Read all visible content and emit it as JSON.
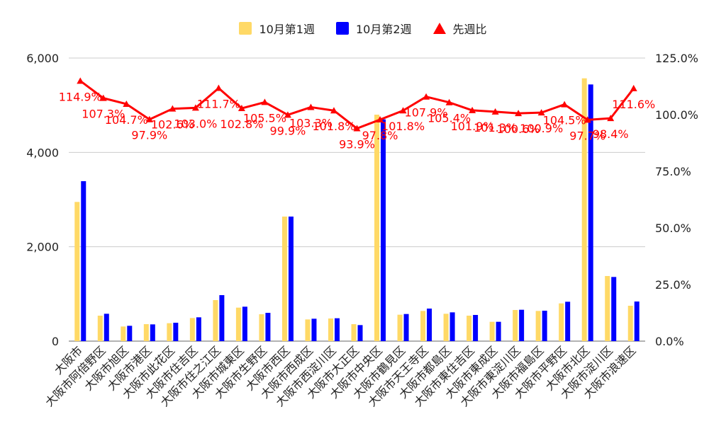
{
  "chart_data": {
    "type": "bar",
    "title": "",
    "categories": [
      "大阪市",
      "大阪市阿倍野区",
      "大阪市旭区",
      "大阪市港区",
      "大阪市此花区",
      "大阪市住吉区",
      "大阪市住之江区",
      "大阪市城東区",
      "大阪市生野区",
      "大阪市西区",
      "大阪市西成区",
      "大阪市西淀川区",
      "大阪市大正区",
      "大阪市中央区",
      "大阪市鶴見区",
      "大阪市天王寺区",
      "大阪市都島区",
      "大阪市東住吉区",
      "大阪市東成区",
      "大阪市東淀川区",
      "大阪市福島区",
      "大阪市平野区",
      "大阪市北区",
      "大阪市淀川区",
      "大阪市浪速区"
    ],
    "series": [
      {
        "name": "10月第1週",
        "type": "bar",
        "axis": "left",
        "color": "#ffd966",
        "values": [
          2950,
          540,
          310,
          360,
          380,
          490,
          870,
          710,
          570,
          2640,
          460,
          480,
          360,
          4800,
          560,
          640,
          580,
          540,
          410,
          660,
          640,
          800,
          5570,
          1380,
          750
        ]
      },
      {
        "name": "10月第2週",
        "type": "bar",
        "axis": "left",
        "color": "#0000ff",
        "values": [
          3390,
          580,
          325,
          355,
          390,
          505,
          975,
          730,
          600,
          2640,
          475,
          485,
          340,
          4700,
          575,
          690,
          610,
          555,
          410,
          665,
          645,
          835,
          5440,
          1360,
          840
        ]
      },
      {
        "name": "先週比",
        "type": "line",
        "axis": "right",
        "color": "#ff0000",
        "values": [
          114.9,
          107.3,
          104.7,
          97.9,
          102.6,
          103.0,
          111.7,
          102.8,
          105.5,
          99.9,
          103.3,
          101.8,
          93.9,
          97.8,
          101.8,
          107.9,
          105.4,
          101.9,
          101.3,
          100.6,
          100.9,
          104.5,
          97.7,
          98.4,
          111.6
        ]
      }
    ],
    "data_labels": [
      "114.9%",
      "107.3%",
      "104.7%",
      "97.9%",
      "102.6%",
      "103.0%",
      "111.7%",
      "102.8%",
      "105.5%",
      "99.9%",
      "103.3%",
      "101.8%",
      "93.9%",
      "97.8%",
      "101.8%",
      "107.9%",
      "105.4%",
      "101.9%",
      "101.3%",
      "100.6%",
      "100.9%",
      "104.5%",
      "97.7%",
      "98.4%",
      "111.6%"
    ],
    "y_left": {
      "min": 0,
      "max": 6000,
      "ticks": [
        "0",
        "2,000",
        "4,000",
        "6,000"
      ],
      "tick_values": [
        0,
        2000,
        4000,
        6000
      ]
    },
    "y_right": {
      "min": 0,
      "max": 125,
      "ticks": [
        "0.0%",
        "25.0%",
        "50.0%",
        "75.0%",
        "100.0%",
        "125.0%"
      ],
      "tick_values": [
        0,
        25,
        50,
        75,
        100,
        125
      ]
    },
    "grid": true,
    "legend_position": "top-center"
  }
}
